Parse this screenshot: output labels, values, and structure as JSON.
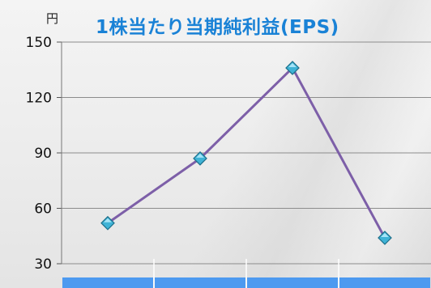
{
  "chart_data": {
    "type": "line",
    "title": "1株当たり当期純利益(EPS)",
    "ylabel": "円",
    "ylim": [
      30,
      150
    ],
    "yticks": [
      "150",
      "120",
      "90",
      "60",
      "30"
    ],
    "categories": [
      "",
      "",
      "",
      ""
    ],
    "series": [
      {
        "values": [
          52,
          87,
          136,
          44
        ],
        "color": "#7d5fa8",
        "marker_color": "#3fb3d6"
      }
    ],
    "grid": true,
    "band_color": "#4d9af0"
  }
}
